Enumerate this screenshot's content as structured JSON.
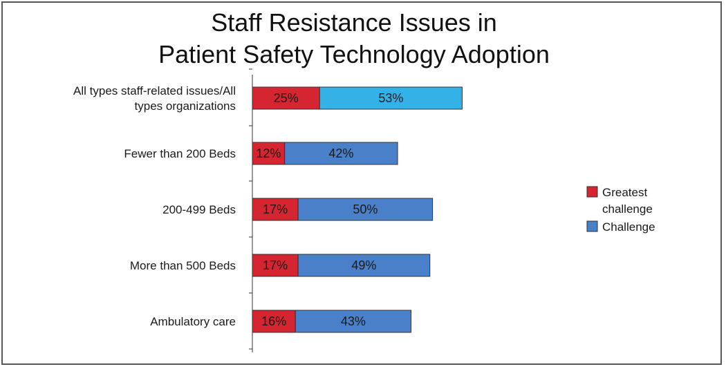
{
  "chart_data": {
    "type": "bar",
    "orientation": "horizontal",
    "stacked": true,
    "title": "Staff Resistance Issues in Patient Safety Technology Adoption",
    "title_lines": [
      "Staff Resistance Issues in",
      "Patient Safety Technology Adoption"
    ],
    "categories": [
      "All types staff-related issues/All types organizations",
      "Fewer than 200 Beds",
      "200-499 Beds",
      "More than 500 Beds",
      "Ambulatory care"
    ],
    "category_lines": [
      [
        "All types staff-related issues/All",
        "types organizations"
      ],
      [
        "Fewer than 200 Beds"
      ],
      [
        "200-499 Beds"
      ],
      [
        "More than 500 Beds"
      ],
      [
        "Ambulatory care"
      ]
    ],
    "series": [
      {
        "name": "Greatest challenge",
        "legend_lines": [
          "Greatest",
          "challenge"
        ],
        "color": "#d42530",
        "values": [
          25,
          12,
          17,
          17,
          16
        ],
        "labels": [
          "25%",
          "12%",
          "17%",
          "17%",
          "16%"
        ]
      },
      {
        "name": "Challenge",
        "legend_lines": [
          "Challenge"
        ],
        "color": "#4a7fc9",
        "values": [
          53,
          42,
          50,
          49,
          43
        ],
        "labels": [
          "53%",
          "42%",
          "50%",
          "49%",
          "43%"
        ]
      }
    ],
    "first_bar_challenge_color": "#33b2e8",
    "unit": "%",
    "legend_position": "right",
    "grid": false,
    "xlim": [
      0,
      100
    ]
  }
}
